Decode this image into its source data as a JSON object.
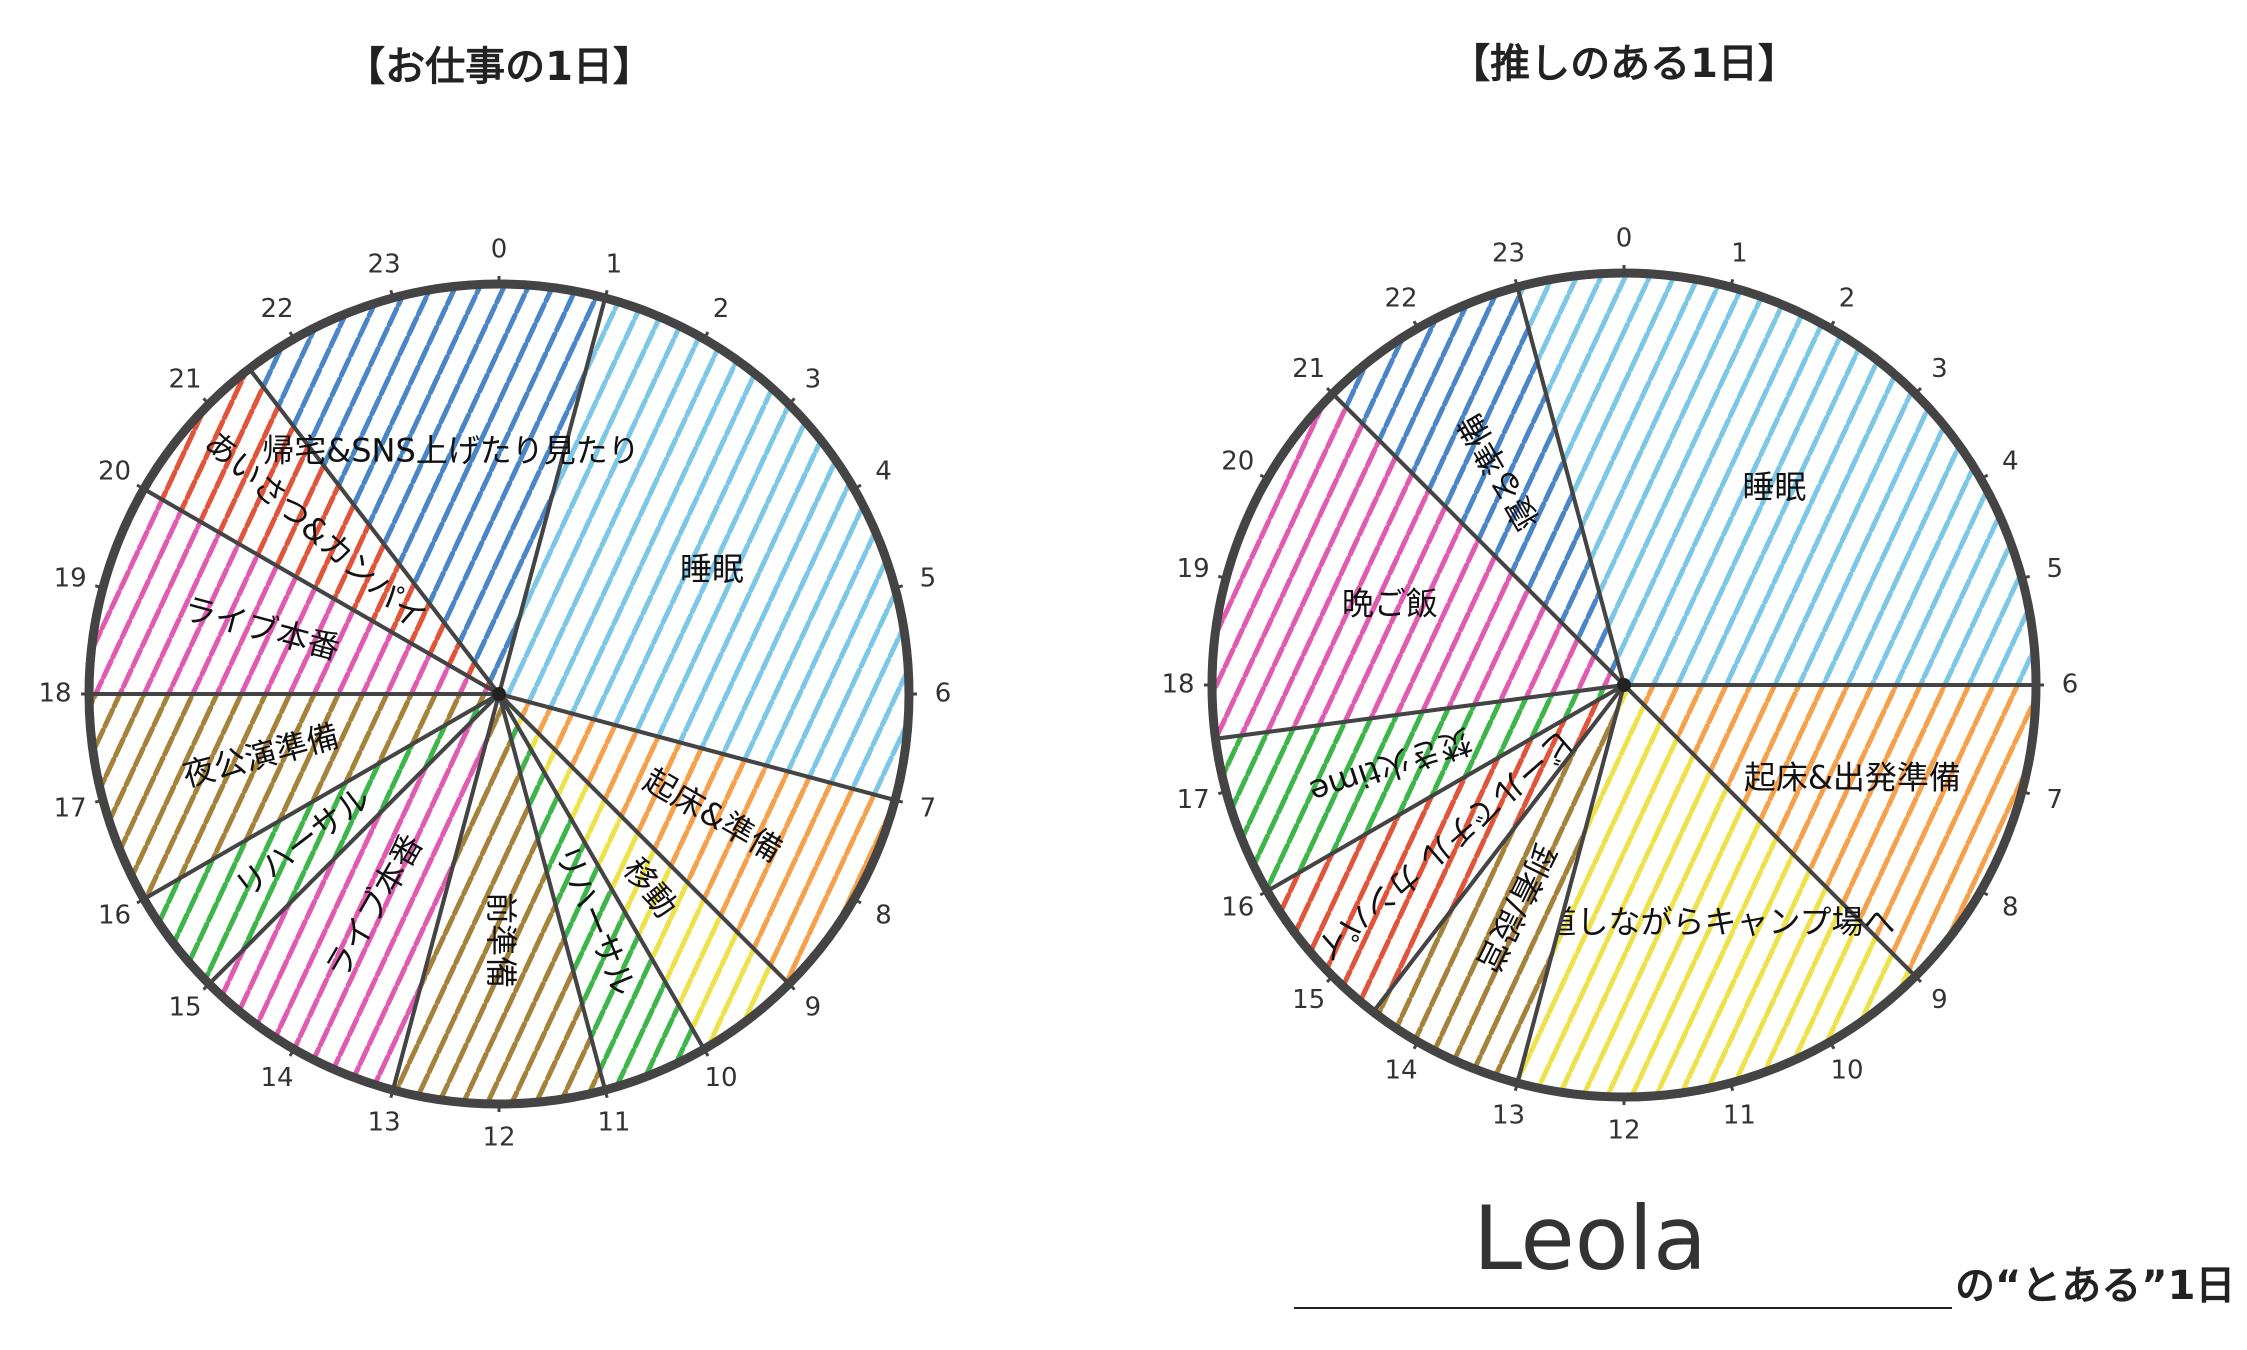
{
  "chart_data": [
    {
      "type": "pie",
      "title": "【お仕事の1日】",
      "start": 1,
      "categories": [
        "睡眠",
        "起床&準備",
        "移動",
        "リハーサル",
        "前準備",
        "ライブ本番",
        "リハーサル",
        "夜公演準備",
        "ライブ本番",
        "あいさつ&カンパイ",
        "帰宅&SNS上げたり見たり"
      ],
      "values": [
        6,
        2,
        1,
        1,
        2,
        2,
        1,
        2,
        2,
        1.5,
        3.5
      ],
      "colors": [
        "#7cc6e6",
        "#f5a04a",
        "#eee24a",
        "#3db54a",
        "#a5823a",
        "#e05ab0",
        "#3db54a",
        "#a5823a",
        "#e05ab0",
        "#e0553a",
        "#4a86c5"
      ],
      "ticks": [
        0,
        1,
        2,
        3,
        4,
        5,
        6,
        7,
        8,
        9,
        10,
        11,
        12,
        13,
        14,
        15,
        16,
        17,
        18,
        19,
        20,
        21,
        22,
        23
      ]
    },
    {
      "type": "pie",
      "title": "【推しのある1日】",
      "start": 23,
      "categories": [
        "睡眠",
        "起床&出発準備",
        "寄り道しながらキャンプ場へ",
        "到着/設営",
        "ビールでチル カンパイ!",
        "焚き火time",
        "晩ご飯",
        "寝る準備"
      ],
      "values": [
        7,
        3,
        4,
        1.5,
        1.5,
        1.5,
        3.5,
        2
      ],
      "colors": [
        "#7cc6e6",
        "#f5a04a",
        "#eee24a",
        "#a5823a",
        "#e0553a",
        "#3db54a",
        "#e05ab0",
        "#4a86c5"
      ],
      "ticks": [
        0,
        1,
        2,
        3,
        4,
        5,
        6,
        7,
        8,
        9,
        10,
        11,
        12,
        13,
        14,
        15,
        16,
        17,
        18,
        19,
        20,
        21,
        22,
        23
      ]
    }
  ],
  "footer": {
    "name": "Leola",
    "suffix": "の“とある”1日"
  }
}
